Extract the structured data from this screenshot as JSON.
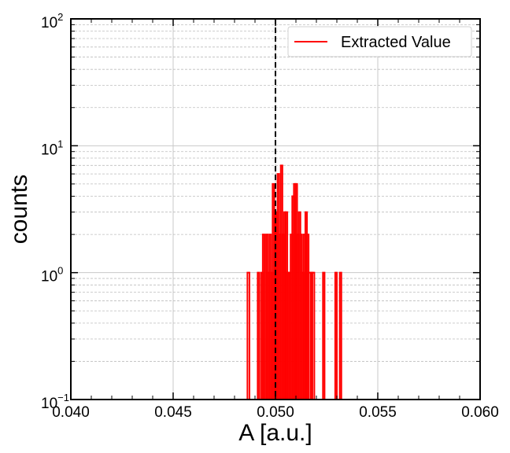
{
  "chart_data": {
    "type": "histogram",
    "xlabel": "A [a.u.]",
    "ylabel": "counts",
    "xlim": [
      0.04,
      0.06
    ],
    "yscale": "log",
    "ylim_exponents": [
      -1,
      2
    ],
    "x_ticks": [
      "0.040",
      "0.045",
      "0.050",
      "0.055",
      "0.060"
    ],
    "y_ticks": [
      {
        "base": "10",
        "exp": "−1"
      },
      {
        "base": "10",
        "exp": "0"
      },
      {
        "base": "10",
        "exp": "1"
      },
      {
        "base": "10",
        "exp": "2"
      }
    ],
    "grid": true,
    "legend_position": "top-right",
    "reference_line": {
      "x": 0.05,
      "style": "dashed",
      "color": "#000000"
    },
    "series": [
      {
        "name": "Extracted Value",
        "color": "#ff0000",
        "bins": [
          {
            "x0": 0.04863,
            "x1": 0.04873,
            "count": 1
          },
          {
            "x0": 0.04913,
            "x1": 0.04921,
            "count": 1
          },
          {
            "x0": 0.0493,
            "x1": 0.04938,
            "count": 1
          },
          {
            "x0": 0.04938,
            "x1": 0.04946,
            "count": 2
          },
          {
            "x0": 0.04954,
            "x1": 0.04962,
            "count": 2
          },
          {
            "x0": 0.04962,
            "x1": 0.0497,
            "count": 1
          },
          {
            "x0": 0.0497,
            "x1": 0.04978,
            "count": 2
          },
          {
            "x0": 0.04978,
            "x1": 0.04986,
            "count": 1
          },
          {
            "x0": 0.04986,
            "x1": 0.04994,
            "count": 5
          },
          {
            "x0": 0.04994,
            "x1": 0.05002,
            "count": 3
          },
          {
            "x0": 0.05002,
            "x1": 0.0501,
            "count": 3
          },
          {
            "x0": 0.0501,
            "x1": 0.05018,
            "count": 6
          },
          {
            "x0": 0.05018,
            "x1": 0.05026,
            "count": 2
          },
          {
            "x0": 0.05026,
            "x1": 0.05034,
            "count": 7
          },
          {
            "x0": 0.05034,
            "x1": 0.05042,
            "count": 2
          },
          {
            "x0": 0.05042,
            "x1": 0.0505,
            "count": 3
          },
          {
            "x0": 0.0505,
            "x1": 0.05058,
            "count": 3
          },
          {
            "x0": 0.05058,
            "x1": 0.05066,
            "count": 1
          },
          {
            "x0": 0.05066,
            "x1": 0.05074,
            "count": 1
          },
          {
            "x0": 0.05074,
            "x1": 0.05082,
            "count": 2
          },
          {
            "x0": 0.05082,
            "x1": 0.0509,
            "count": 4
          },
          {
            "x0": 0.0509,
            "x1": 0.05098,
            "count": 5
          },
          {
            "x0": 0.05098,
            "x1": 0.05106,
            "count": 5
          },
          {
            "x0": 0.05106,
            "x1": 0.05114,
            "count": 2
          },
          {
            "x0": 0.05114,
            "x1": 0.05122,
            "count": 3
          },
          {
            "x0": 0.05122,
            "x1": 0.0513,
            "count": 2
          },
          {
            "x0": 0.0513,
            "x1": 0.05138,
            "count": 1
          },
          {
            "x0": 0.05138,
            "x1": 0.05146,
            "count": 2
          },
          {
            "x0": 0.05146,
            "x1": 0.05154,
            "count": 3
          },
          {
            "x0": 0.05154,
            "x1": 0.05162,
            "count": 2
          },
          {
            "x0": 0.05162,
            "x1": 0.05172,
            "count": 1
          },
          {
            "x0": 0.05172,
            "x1": 0.0518,
            "count": 1
          },
          {
            "x0": 0.0518,
            "x1": 0.0519,
            "count": 1
          },
          {
            "x0": 0.05232,
            "x1": 0.0524,
            "count": 1
          },
          {
            "x0": 0.05292,
            "x1": 0.053,
            "count": 1
          },
          {
            "x0": 0.05314,
            "x1": 0.05322,
            "count": 1
          }
        ]
      }
    ]
  }
}
